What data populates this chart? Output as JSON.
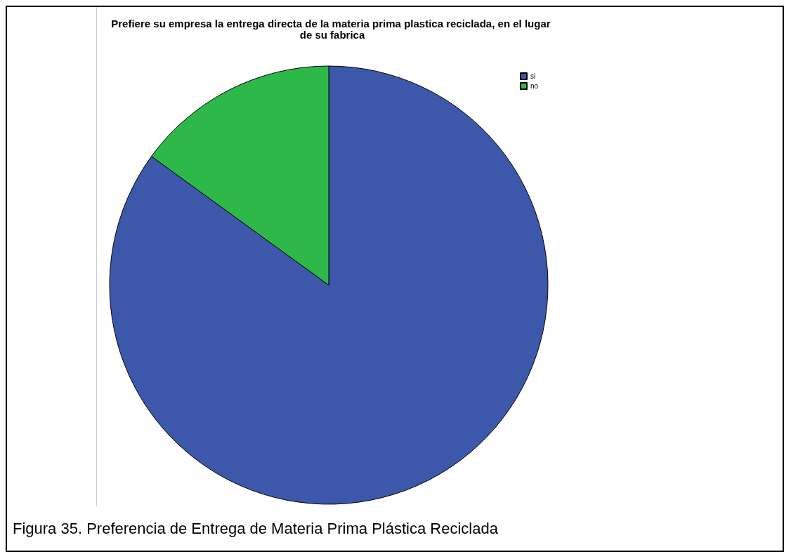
{
  "chart_data": {
    "type": "pie",
    "title": "Prefiere su empresa la entrega directa de la materia prima plastica reciclada, en el lugar de su fabrica",
    "categories": [
      "si",
      "no"
    ],
    "values": [
      85,
      15
    ],
    "colors": [
      "#3d58aa",
      "#2fb84a"
    ],
    "legend": "top right",
    "annotations": [
      "Figura 35. Preferencia de Entrega de Materia Prima Plástica Reciclada"
    ]
  }
}
